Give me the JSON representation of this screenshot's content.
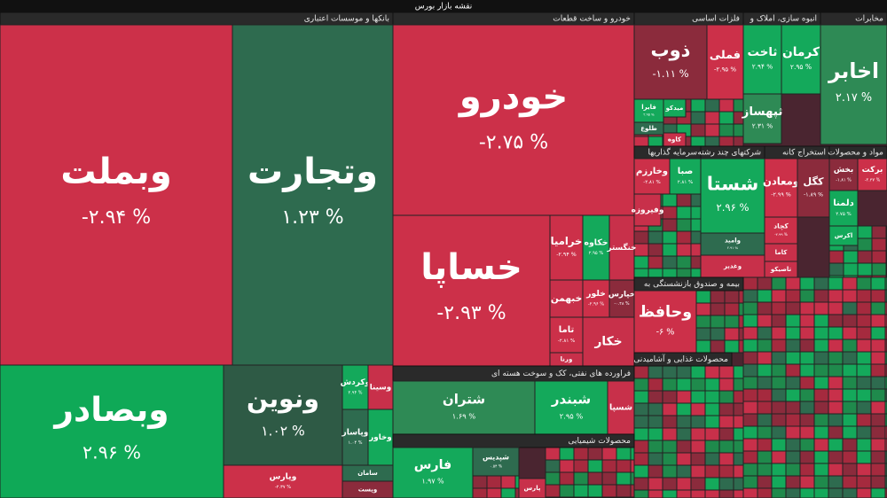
{
  "chart_data": {
    "type": "treemap",
    "title": "نقشه بازار بورس",
    "sectors": [
      {
        "name": "بانکها و موسسات اعتباری",
        "tiles": [
          "وبملت",
          "وتجارت",
          "وبصادر",
          "ونوین",
          "ویارس",
          "وکردش",
          "وسینا",
          "وپاسار",
          "وخاور",
          "سامان",
          "وپست"
        ],
        "values": [
          -2.94,
          1.23,
          2.96,
          1.02,
          -2.37,
          2.94,
          null,
          1.04,
          null,
          null,
          null
        ],
        "value_labels": [
          "-۲.۹۴ %",
          "۱.۲۳ %",
          "۲.۹۶ %",
          "۱.۰۲ %",
          "-۲.۳۷ %",
          "۲.۹۴ %",
          null,
          "۱.۰۴ %",
          null,
          null,
          null
        ],
        "colors": [
          "#cc3049",
          "#2e6b4f",
          "#0fa957",
          "#2e5a45",
          "#cc3049",
          "#14a95b",
          "#c8304a",
          "#2e6b4f",
          "#14a95b",
          "#2e6b4f",
          "#8b2b3c"
        ]
      },
      {
        "name": "خودرو و ساخت قطعات",
        "tiles": [
          "خودرو",
          "خساپا",
          "خرامیا",
          "خکاوه",
          "خنگستر",
          "خبهمن",
          "خلور",
          "خپارس",
          "تاما",
          "خکار",
          "ورنا"
        ],
        "values": [
          -2.75,
          -2.93,
          -2.94,
          2.95,
          null,
          null,
          -2.96,
          -0.48,
          -2.81,
          null,
          null
        ],
        "value_labels": [
          "-۲.۷۵ %",
          "-۲.۹۳ %",
          "-۲.۹۴ %",
          "۲.۹۵ %",
          null,
          null,
          "-۲.۹۶ %",
          "-۰.۴۸ %",
          "-۲.۸۱ %",
          null,
          null
        ],
        "colors": [
          "#cc3049",
          "#cc3049",
          "#cc3049",
          "#14a95b",
          "#c8304a",
          "#c8304a",
          "#cc3049",
          "#8b2b3c",
          "#cc3049",
          "#c8304a",
          "#c8304a"
        ]
      },
      {
        "name": "فلزات اساسی",
        "tiles": [
          "ذوب",
          "فملی",
          "فایرا",
          "میدکو",
          "طلوع",
          "کاوه"
        ],
        "values": [
          -1.11,
          -2.95,
          2.95,
          null,
          null,
          null
        ],
        "value_labels": [
          "-۱.۱۱ %",
          "-۲.۹۵ %",
          "۲.۹۵ %",
          null,
          null,
          null
        ],
        "colors": [
          "#8b2b3c",
          "#cc3049",
          "#14a95b",
          "#14a95b",
          "#2e6b4f",
          "#c8304a"
        ]
      },
      {
        "name": "انبوه سازی، املاک و",
        "tiles": [
          "ثاخت",
          "کرمان",
          "ثپهساز"
        ],
        "values": [
          2.94,
          2.95,
          2.31
        ],
        "value_labels": [
          "۲.۹۴ %",
          "۲.۹۵ %",
          "۲.۳۱ %"
        ],
        "colors": [
          "#14a95b",
          "#14a95b",
          "#2e8a55"
        ]
      },
      {
        "name": "مخابرات",
        "tiles": [
          "اخابر"
        ],
        "values": [
          2.17
        ],
        "value_labels": [
          "۲.۱۷ %"
        ],
        "colors": [
          "#2e8a55"
        ]
      },
      {
        "name": "سرمایه گذاریها",
        "tiles": [
          "وخارزم",
          "صبا",
          "وفیروزه"
        ],
        "values": [
          -2.81,
          2.81,
          null
        ],
        "value_labels": [
          "-۲.۸۱ %",
          "۲.۸۱ %",
          null
        ],
        "colors": [
          "#cc3049",
          "#14a95b",
          "#c8304a"
        ]
      },
      {
        "name": "شرکتهای چند رشته",
        "tiles": [
          "شستا",
          "وامید",
          "وغدیر"
        ],
        "values": [
          2.96,
          2.91,
          null
        ],
        "value_labels": [
          "۲.۹۶ %",
          "۲.۹۱ %",
          null
        ],
        "colors": [
          "#14a95b",
          "#2e6b4f",
          "#c8304a"
        ]
      },
      {
        "name": "استخراج کانه",
        "tiles": [
          "ومعادن",
          "کگل",
          "کچاد",
          "کاما",
          "تاصیکو"
        ],
        "values": [
          -2.99,
          -1.89,
          -2.99,
          null,
          null
        ],
        "value_labels": [
          "-۲.۹۹ %",
          "-۱.۸۹ %",
          "-۲.۹۹ %",
          null,
          null
        ],
        "colors": [
          "#cc3049",
          "#8b2b3c",
          "#cc3049",
          "#c8304a",
          "#c8304a"
        ]
      },
      {
        "name": "مواد و محصولات",
        "tiles": [
          "بخش",
          "برکت",
          "دلمنا",
          "اکرس"
        ],
        "values": [
          -1.81,
          -2.47,
          2.75,
          null
        ],
        "value_labels": [
          "-۱.۸۱ %",
          "-۲.۴۷ %",
          "۲.۷۵ %",
          null
        ],
        "colors": [
          "#8b2b3c",
          "#cc3049",
          "#14a95b",
          "#14a95b"
        ]
      },
      {
        "name": "بیمه و صندوق بازنشستگی به",
        "tiles": [
          "وحافظ"
        ],
        "values": [
          -6
        ],
        "value_labels": [
          "-۶ %"
        ],
        "colors": [
          "#cc3049"
        ]
      },
      {
        "name": "فراورده های نفتی، کک و سوخت هسته ای",
        "tiles": [
          "شتران",
          "شبندر",
          "شسپا"
        ],
        "values": [
          1.69,
          2.95,
          null
        ],
        "value_labels": [
          "۱.۶۹ %",
          "۲.۹۵ %",
          null
        ],
        "colors": [
          "#2e8a55",
          "#14a95b",
          "#c8304a"
        ]
      },
      {
        "name": "محصولات شیمیایی",
        "tiles": [
          "فارس",
          "شپدیس",
          "پارس"
        ],
        "values": [
          1.97,
          0.54,
          null
        ],
        "value_labels": [
          "۱.۹۷ %",
          "۰.۵۴ %",
          null
        ],
        "colors": [
          "#14a95b",
          "#2e6b4f",
          "#c8304a"
        ]
      },
      {
        "name": "محصولات غذایی و آشامیدنی",
        "tiles": [],
        "values": [],
        "value_labels": [],
        "colors": []
      }
    ]
  }
}
